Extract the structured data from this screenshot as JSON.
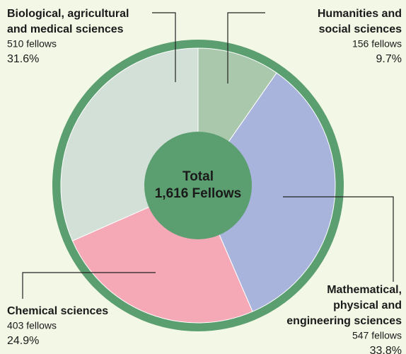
{
  "chart_data": {
    "type": "pie",
    "categories": [
      [
        "Humanities and",
        "social sciences"
      ],
      [
        "Mathematical,",
        "physical and",
        "engineering sciences"
      ],
      [
        "Chemical sciences"
      ],
      [
        "Biological, agricultural",
        "and medical sciences"
      ]
    ],
    "values": [
      9.7,
      33.8,
      24.9,
      31.6
    ],
    "value_labels": [
      "9.7%",
      "33.8%",
      "24.9%",
      "31.6%"
    ],
    "counts": [
      156,
      547,
      403,
      510
    ],
    "count_labels": [
      "156 fellows",
      "547 fellows",
      "403 fellows",
      "510 fellows"
    ],
    "colors": [
      "#aac8ac",
      "#a9b4dd",
      "#f5a8b6",
      "#d3e0d8"
    ],
    "ring_color": "#5b9e70",
    "center_label": [
      "Total",
      "1,616 Fellows"
    ]
  }
}
